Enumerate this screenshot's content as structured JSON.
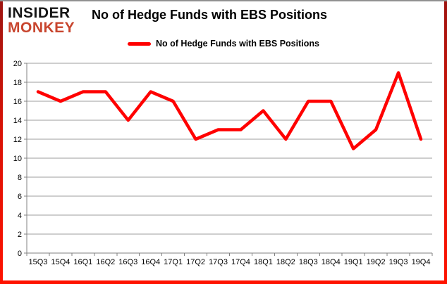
{
  "header": {
    "logo": {
      "line1": "INSIDER",
      "line2": "MONKEY"
    },
    "title": "No of Hedge Funds with EBS Positions"
  },
  "legend": {
    "label": "No of Hedge Funds with EBS Positions"
  },
  "colors": {
    "line": "#FF0000",
    "grid": "#9c9c9c",
    "axis": "#808080",
    "logo_black": "#151515",
    "logo_red": "#c8452e",
    "text": "#000000"
  },
  "chart_data": {
    "type": "line",
    "title": "No of Hedge Funds with EBS Positions",
    "xlabel": "",
    "ylabel": "",
    "categories": [
      "15Q3",
      "15Q4",
      "16Q1",
      "16Q2",
      "16Q3",
      "16Q4",
      "17Q1",
      "17Q2",
      "17Q3",
      "17Q4",
      "18Q1",
      "18Q2",
      "18Q3",
      "18Q4",
      "19Q1",
      "19Q2",
      "19Q3",
      "19Q4"
    ],
    "series": [
      {
        "name": "No of Hedge Funds with EBS Positions",
        "values": [
          17,
          16,
          17,
          17,
          14,
          17,
          16,
          12,
          13,
          13,
          15,
          12,
          16,
          16,
          11,
          13,
          19,
          12
        ]
      }
    ],
    "ylim": [
      0,
      20
    ],
    "ytick_step": 2,
    "grid": true,
    "legend_position": "top-center"
  }
}
